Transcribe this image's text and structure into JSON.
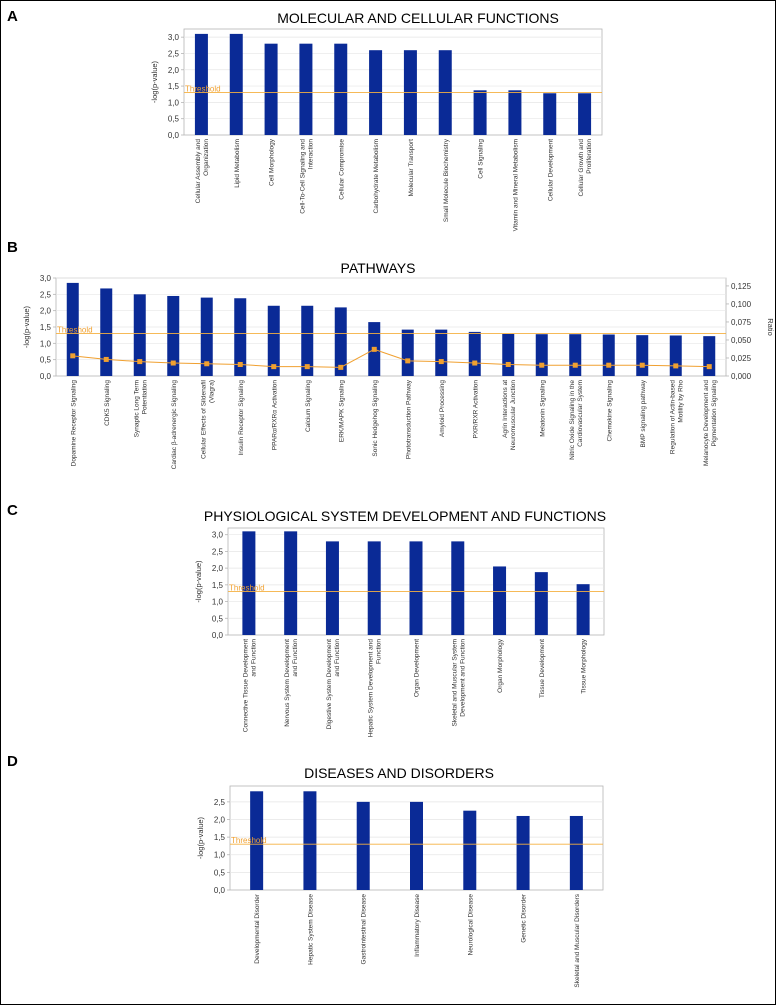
{
  "colors": {
    "bar": "#0a2a96",
    "threshold": "#f5b041",
    "ratio": "#f0a030",
    "grid": "#e6e6e6",
    "axis": "#b5b5b5"
  },
  "chart_data": [
    {
      "panel": "A",
      "type": "bar",
      "title": "MOLECULAR AND CELLULAR FUNCTIONS",
      "ylabel": "-log(p-value)",
      "ylim": [
        0,
        3.25
      ],
      "yticks": [
        "0,0",
        "0,5",
        "1,0",
        "1,5",
        "2,0",
        "2,5",
        "3,0"
      ],
      "threshold": {
        "label": "Threshold",
        "value": 1.3
      },
      "categories": [
        [
          "Cellular Assembly and",
          "Organization"
        ],
        [
          "Lipid Metabolism"
        ],
        [
          "Cell Morphology"
        ],
        [
          "Cell-To-Cell Signaling and",
          "Interaction"
        ],
        [
          "Cellular Compromise"
        ],
        [
          "Carbohydrate Metabolism"
        ],
        [
          "Molecular Transport"
        ],
        [
          "Small Molecule Biochemistry"
        ],
        [
          "Cell Signaling"
        ],
        [
          "Vitamin and Mineral Metabolism"
        ],
        [
          "Cellular Development"
        ],
        [
          "Cellular Growth and",
          "Proliferation"
        ]
      ],
      "values": [
        3.1,
        3.1,
        2.8,
        2.8,
        2.8,
        2.6,
        2.6,
        2.6,
        1.37,
        1.37,
        1.28,
        1.28
      ]
    },
    {
      "panel": "B",
      "type": "bar",
      "title": "PATHWAYS",
      "ylabel": "-log(p-value)",
      "y2label": "Ratio",
      "ylim": [
        0,
        3.0
      ],
      "y2lim": [
        0,
        0.136
      ],
      "yticks": [
        "0,0",
        "0,5",
        "1,0",
        "1,5",
        "2,0",
        "2,5",
        "3,0"
      ],
      "y2ticks": [
        "0,000",
        "0,025",
        "0,050",
        "0,075",
        "0,100",
        "0,125"
      ],
      "threshold": {
        "label": "Threshold",
        "value": 1.3
      },
      "categories": [
        [
          "Dopamine Receptor Signaling"
        ],
        [
          "CDK5 Signaling"
        ],
        [
          "Synaptic Long Term",
          "Potentiation"
        ],
        [
          "Cardiac β-adrenergic Signaling"
        ],
        [
          "Cellular Effects of Sildenafil",
          "(Viagra)"
        ],
        [
          "Insulin Receptor Signaling"
        ],
        [
          "PPARα/RXRα Activation"
        ],
        [
          "Calcium Signaling"
        ],
        [
          "ERK/MAPK Signaling"
        ],
        [
          "Sonic Hedgehog Signaling"
        ],
        [
          "Phototransduction Pathway"
        ],
        [
          "Amyloid Processing"
        ],
        [
          "PXR/RXR Activation"
        ],
        [
          "Agrin Interactions at",
          "Neuromuscular Junction"
        ],
        [
          "Melatonin Signaling"
        ],
        [
          "Nitric Oxide Signaling in the",
          "Cardiovascular System"
        ],
        [
          "Chemokine Signaling"
        ],
        [
          "BMP signaling pathway"
        ],
        [
          "Regulation of Actin-based",
          "Motility by Rho"
        ],
        [
          "Melanocyte Development and",
          "Pigmentation Signaling"
        ]
      ],
      "values": [
        2.85,
        2.68,
        2.5,
        2.45,
        2.4,
        2.38,
        2.15,
        2.15,
        2.1,
        1.65,
        1.42,
        1.42,
        1.35,
        1.3,
        1.28,
        1.28,
        1.27,
        1.25,
        1.24,
        1.22
      ],
      "ratio": [
        0.028,
        0.023,
        0.02,
        0.018,
        0.017,
        0.016,
        0.013,
        0.013,
        0.012,
        0.037,
        0.021,
        0.02,
        0.018,
        0.016,
        0.015,
        0.015,
        0.015,
        0.015,
        0.014,
        0.013
      ]
    },
    {
      "panel": "C",
      "type": "bar",
      "title": "PHYSIOLOGICAL SYSTEM DEVELOPMENT AND FUNCTIONS",
      "ylabel": "-log(p-value)",
      "ylim": [
        0,
        3.2
      ],
      "yticks": [
        "0,0",
        "0,5",
        "1,0",
        "1,5",
        "2,0",
        "2,5",
        "3,0"
      ],
      "threshold": {
        "label": "Threshold",
        "value": 1.3
      },
      "categories": [
        [
          "Connective Tissue Development",
          "and Function"
        ],
        [
          "Nervous System Development",
          "and Function"
        ],
        [
          "Digestive System Development",
          "and Function"
        ],
        [
          "Hepatic System Development and",
          "Function"
        ],
        [
          "Organ Development"
        ],
        [
          "Skeletal and Muscular System",
          "Development and Function"
        ],
        [
          "Organ Morphology"
        ],
        [
          "Tissue Development"
        ],
        [
          "Tissue Morphology"
        ]
      ],
      "values": [
        3.1,
        3.1,
        2.8,
        2.8,
        2.8,
        2.8,
        2.05,
        1.88,
        1.52
      ]
    },
    {
      "panel": "D",
      "type": "bar",
      "title": "DISEASES AND DISORDERS",
      "ylabel": "-log(p-value)",
      "ylim": [
        0,
        2.95
      ],
      "yticks": [
        "0,0",
        "0,5",
        "1,0",
        "1,5",
        "2,0",
        "2,5"
      ],
      "threshold": {
        "label": "Threshold",
        "value": 1.3
      },
      "categories": [
        [
          "Developmental Disorder"
        ],
        [
          "Hepatic System Disease"
        ],
        [
          "Gastrointestinal Disease"
        ],
        [
          "Inflammatory Disease"
        ],
        [
          "Neurological Disease"
        ],
        [
          "Genetic Disorder"
        ],
        [
          "Skeletal and Muscular Disorders"
        ]
      ],
      "values": [
        2.8,
        2.8,
        2.5,
        2.5,
        2.25,
        2.1,
        2.1
      ]
    }
  ]
}
